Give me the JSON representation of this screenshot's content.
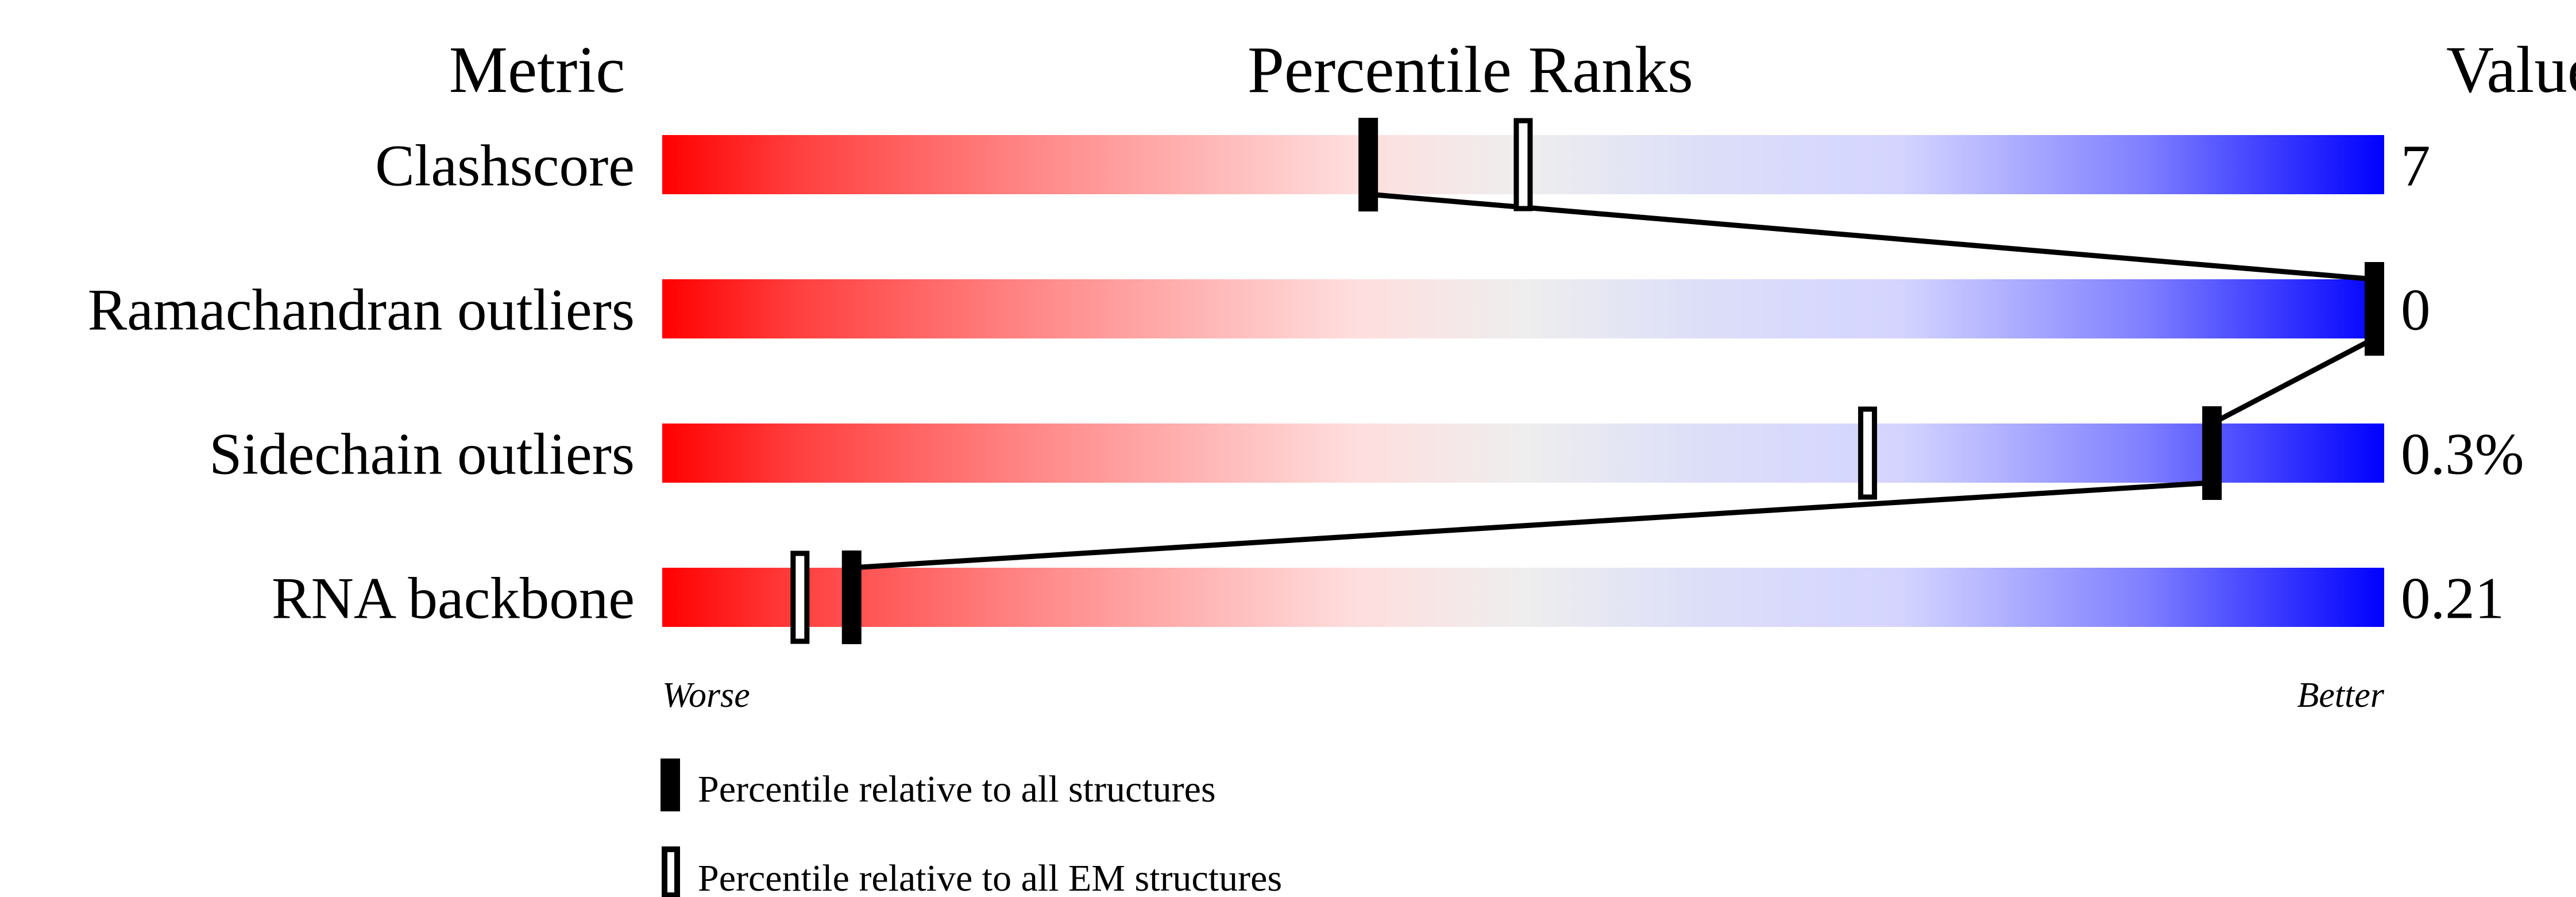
{
  "chart_data": {
    "type": "bar",
    "headers": {
      "metric": "Metric",
      "ranks": "Percentile Ranks",
      "value": "Value"
    },
    "axis": {
      "left_label": "Worse",
      "right_label": "Better",
      "range": [
        0,
        100
      ]
    },
    "metrics": [
      {
        "name": "Clashscore",
        "value": "7",
        "percentile_all": 41,
        "percentile_em": 50
      },
      {
        "name": "Ramachandran outliers",
        "value": "0",
        "percentile_all": 100,
        "percentile_em": 100
      },
      {
        "name": "Sidechain outliers",
        "value": "0.3%",
        "percentile_all": 90,
        "percentile_em": 70
      },
      {
        "name": "RNA backbone",
        "value": "0.21",
        "percentile_all": 11,
        "percentile_em": 8
      }
    ],
    "legend": [
      {
        "label": "Percentile relative to all structures",
        "marker": "filled"
      },
      {
        "label": "Percentile relative to all EM structures",
        "marker": "hollow"
      }
    ],
    "colors": {
      "worse": "#ff0000",
      "middle": "#eeeeee",
      "better": "#0000ff"
    }
  }
}
